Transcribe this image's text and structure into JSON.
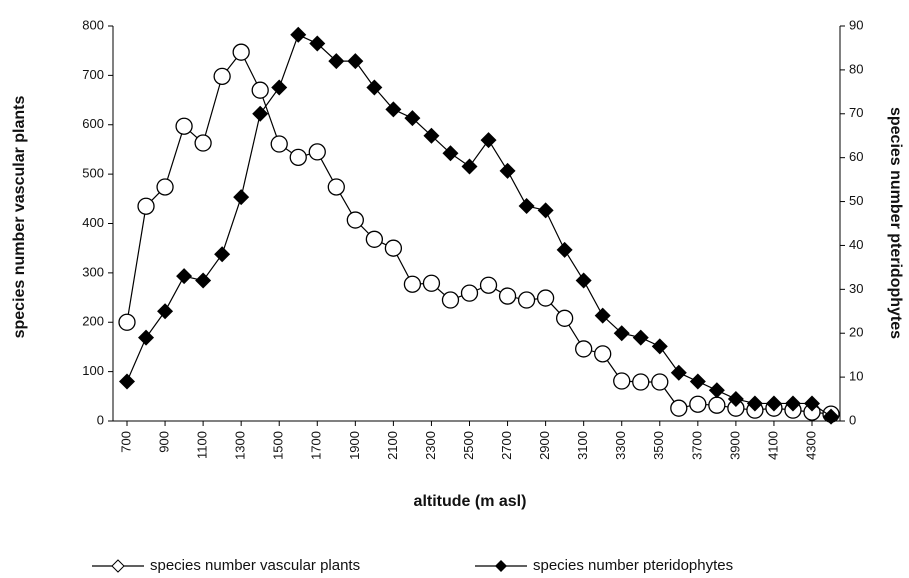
{
  "chart_data": {
    "type": "line",
    "title_x": "altitude (m asl)",
    "ylabel": "species number vascular plants",
    "y2label": "species number pteridophytes",
    "categories": [
      "700",
      null,
      "900",
      null,
      "1100",
      null,
      "1300",
      null,
      "1500",
      null,
      "1700",
      null,
      "1900",
      null,
      "2100",
      null,
      "2300",
      null,
      "2500",
      null,
      "2700",
      null,
      "2900",
      null,
      "3100",
      null,
      "3300",
      null,
      "3500",
      null,
      "3700",
      null,
      "3900",
      null,
      "4100",
      null,
      "4300",
      null
    ],
    "series": [
      {
        "name": "species number vascular plants",
        "color": "#000000",
        "marker": "circle",
        "values": [
          200,
          435,
          474,
          597,
          563,
          698,
          747,
          670,
          561,
          534,
          545,
          474,
          407,
          368,
          350,
          277,
          279,
          245,
          259,
          275,
          253,
          245,
          249,
          208,
          146,
          136,
          81,
          79,
          79,
          26,
          34,
          32,
          26,
          22,
          26,
          22,
          18,
          14
        ]
      },
      {
        "name": "species number pteridophytes",
        "color": "#000000",
        "marker": "diamond",
        "axis": "y2",
        "values": [
          9,
          19,
          25,
          33,
          32,
          38,
          51,
          70,
          76,
          88,
          86,
          82,
          82,
          76,
          71,
          69,
          65,
          61,
          58,
          64,
          57,
          49,
          48,
          39,
          32,
          24,
          20,
          19,
          17,
          11,
          9,
          7,
          5,
          4,
          4,
          4,
          4,
          1
        ]
      }
    ],
    "ylim": [
      0,
      800
    ],
    "yticks": [
      0,
      100,
      200,
      300,
      400,
      500,
      600,
      700,
      800
    ],
    "y2lim": [
      0,
      90
    ],
    "y2ticks": [
      0,
      10,
      20,
      30,
      40,
      50,
      60,
      70,
      80,
      90
    ]
  }
}
